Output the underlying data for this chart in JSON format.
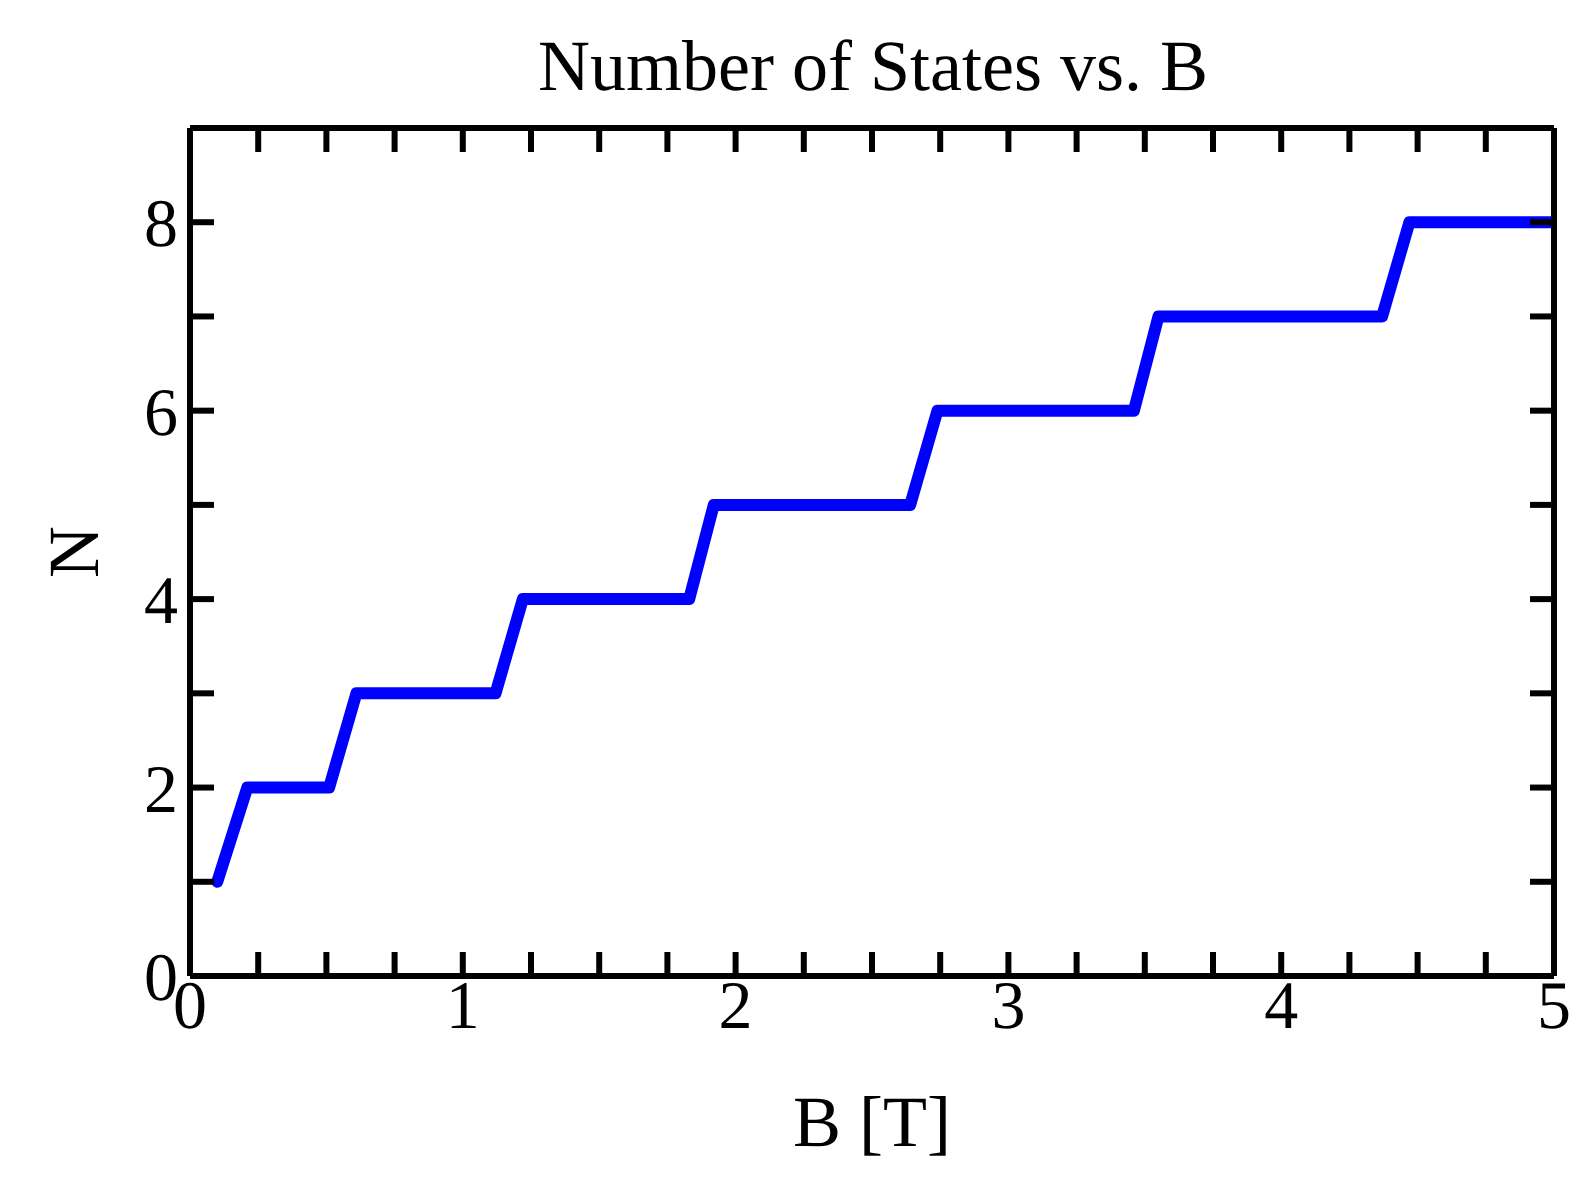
{
  "chart_data": {
    "type": "line",
    "title": "Number of States vs. B",
    "xlabel": "B [T]",
    "ylabel": "N",
    "x": [
      0.1,
      0.21,
      0.51,
      0.61,
      1.12,
      1.22,
      1.83,
      1.92,
      2.64,
      2.74,
      3.46,
      3.55,
      4.37,
      4.47,
      5
    ],
    "series": [
      {
        "color": "#0000ff",
        "values": [
          1,
          2,
          2,
          3,
          3,
          4,
          4,
          5,
          5,
          6,
          6,
          7,
          7,
          8,
          8
        ]
      }
    ],
    "xlim": [
      0,
      5
    ],
    "ylim": [
      0,
      9
    ],
    "xticks": [
      0,
      {
        "value": 0.25,
        "label": null
      },
      {
        "value": 0.5,
        "label": null
      },
      {
        "value": 0.75,
        "label": null
      },
      1,
      {
        "value": 1.25,
        "label": null
      },
      {
        "value": 1.5,
        "label": null
      },
      {
        "value": 1.75,
        "label": null
      },
      2,
      {
        "value": 2.25,
        "label": null
      },
      {
        "value": 2.5,
        "label": null
      },
      {
        "value": 2.75,
        "label": null
      },
      3,
      {
        "value": 3.25,
        "label": null
      },
      {
        "value": 3.5,
        "label": null
      },
      {
        "value": 3.75,
        "label": null
      },
      4,
      {
        "value": 4.25,
        "label": null
      },
      {
        "value": 4.5,
        "label": null
      },
      {
        "value": 4.75,
        "label": null
      },
      5
    ],
    "yticks": [
      0,
      {
        "value": 1,
        "label": null
      },
      2,
      {
        "value": 3,
        "label": null
      },
      4,
      {
        "value": 5,
        "label": null
      },
      6,
      {
        "value": 7,
        "label": null
      },
      8,
      {
        "value": 9,
        "label": null
      }
    ],
    "grid": false,
    "legend": false,
    "marker": "none",
    "line_style": "solid"
  }
}
